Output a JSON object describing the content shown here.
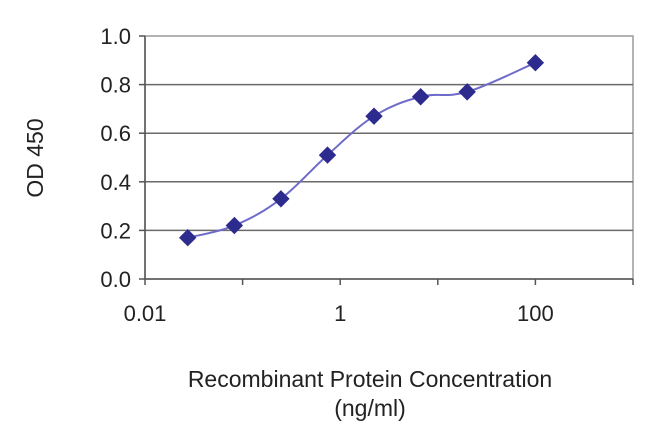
{
  "chart_data": {
    "type": "line",
    "title": "",
    "xlabel": "Recombinant Protein Concentration",
    "xlabel_unit": "(ng/ml)",
    "ylabel": "OD 450",
    "x_scale": "log",
    "xlim": [
      0.01,
      1000
    ],
    "ylim": [
      0,
      1.0
    ],
    "x_ticks": [
      0.01,
      1,
      100
    ],
    "x_tick_labels": [
      "0.01",
      "1",
      "100"
    ],
    "y_ticks": [
      0,
      0.2,
      0.4,
      0.6,
      0.8,
      1.0
    ],
    "y_tick_labels": [
      "0.0",
      "0.2",
      "0.4",
      "0.6",
      "0.8",
      "1.0"
    ],
    "grid": "horizontal",
    "legend": "none",
    "series": [
      {
        "marker": "diamond",
        "color": "#2e2b8f",
        "line_color": "#6f6cc9",
        "x": [
          0.0274,
          0.0823,
          0.247,
          0.741,
          2.22,
          6.67,
          20,
          100
        ],
        "y": [
          0.17,
          0.22,
          0.33,
          0.51,
          0.67,
          0.75,
          0.77,
          0.89
        ]
      }
    ]
  }
}
